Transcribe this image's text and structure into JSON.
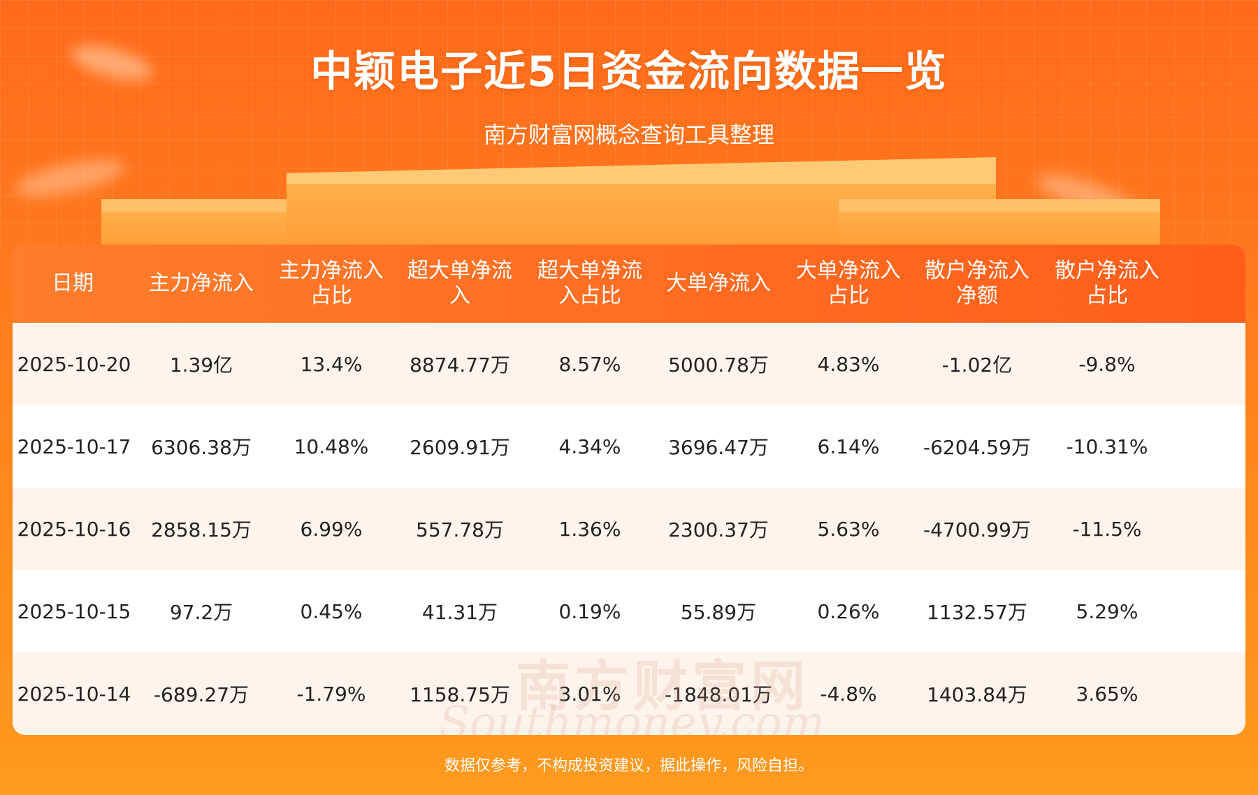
{
  "header": {
    "title": "中颖电子近5日资金流向数据一览",
    "subtitle": "南方财富网概念查询工具整理"
  },
  "table": {
    "columns": [
      {
        "label": "日期"
      },
      {
        "label": "主力净流入"
      },
      {
        "label": "主力净流入占比"
      },
      {
        "label": "超大单净流入"
      },
      {
        "label": "超大单净流入占比"
      },
      {
        "label": "大单净流入"
      },
      {
        "label": "大单净流入占比"
      },
      {
        "label": "散户净流入净额"
      },
      {
        "label": "散户净流入占比"
      }
    ],
    "rows": [
      [
        "2025-10-20",
        "1.39亿",
        "13.4%",
        "8874.77万",
        "8.57%",
        "5000.78万",
        "4.83%",
        "-1.02亿",
        "-9.8%"
      ],
      [
        "2025-10-17",
        "6306.38万",
        "10.48%",
        "2609.91万",
        "4.34%",
        "3696.47万",
        "6.14%",
        "-6204.59万",
        "-10.31%"
      ],
      [
        "2025-10-16",
        "2858.15万",
        "6.99%",
        "557.78万",
        "1.36%",
        "2300.37万",
        "5.63%",
        "-4700.99万",
        "-11.5%"
      ],
      [
        "2025-10-15",
        "97.2万",
        "0.45%",
        "41.31万",
        "0.19%",
        "55.89万",
        "0.26%",
        "1132.57万",
        "5.29%"
      ],
      [
        "2025-10-14",
        "-689.27万",
        "-1.79%",
        "1158.75万",
        "3.01%",
        "-1848.01万",
        "-4.8%",
        "1403.84万",
        "3.65%"
      ]
    ]
  },
  "watermark": {
    "cn": "南方财富网",
    "en": "Southmoney.com"
  },
  "footer": {
    "disclaimer": "数据仅参考，不构成投资建议，据此操作，风险自担。"
  }
}
